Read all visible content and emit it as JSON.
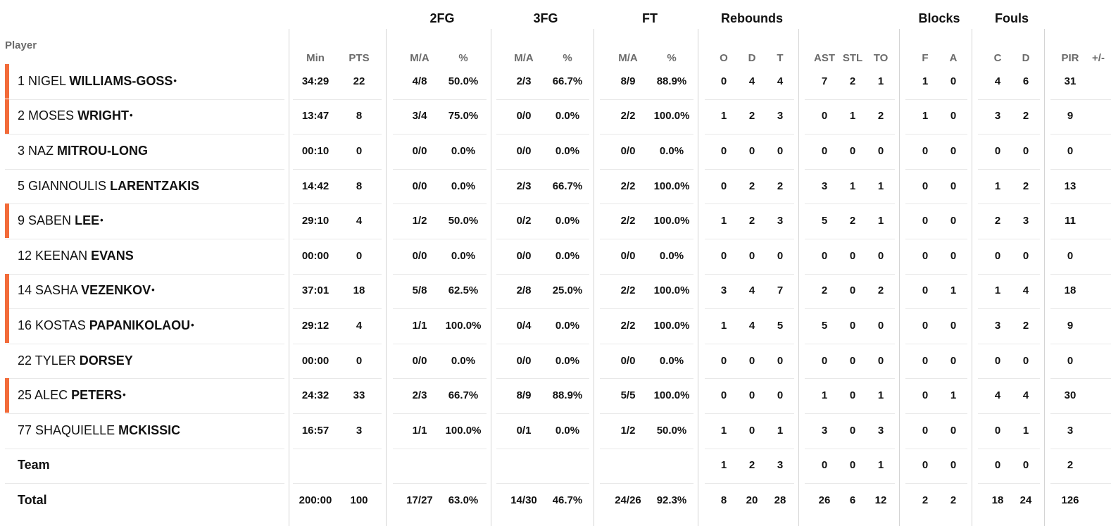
{
  "headers": {
    "player": "Player",
    "groups": {
      "fg2": "2FG",
      "fg3": "3FG",
      "ft": "FT",
      "reb": "Rebounds",
      "blk": "Blocks",
      "fouls": "Fouls"
    },
    "columns": [
      "Min",
      "PTS",
      "M/A",
      "%",
      "M/A",
      "%",
      "M/A",
      "%",
      "O",
      "D",
      "T",
      "AST",
      "STL",
      "TO",
      "F",
      "A",
      "C",
      "D",
      "PIR",
      "+/-"
    ]
  },
  "starter_color": "#f26b3a",
  "starter_mark": "•",
  "players": [
    {
      "num": "1",
      "first": "NIGEL",
      "last": "WILLIAMS-GOSS",
      "starter": true,
      "stats": [
        "34:29",
        "22",
        "4/8",
        "50.0%",
        "2/3",
        "66.7%",
        "8/9",
        "88.9%",
        "0",
        "4",
        "4",
        "7",
        "2",
        "1",
        "1",
        "0",
        "4",
        "6",
        "31",
        ""
      ]
    },
    {
      "num": "2",
      "first": "MOSES",
      "last": "WRIGHT",
      "starter": true,
      "stats": [
        "13:47",
        "8",
        "3/4",
        "75.0%",
        "0/0",
        "0.0%",
        "2/2",
        "100.0%",
        "1",
        "2",
        "3",
        "0",
        "1",
        "2",
        "1",
        "0",
        "3",
        "2",
        "9",
        ""
      ]
    },
    {
      "num": "3",
      "first": "NAZ",
      "last": "MITROU-LONG",
      "starter": false,
      "stats": [
        "00:10",
        "0",
        "0/0",
        "0.0%",
        "0/0",
        "0.0%",
        "0/0",
        "0.0%",
        "0",
        "0",
        "0",
        "0",
        "0",
        "0",
        "0",
        "0",
        "0",
        "0",
        "0",
        ""
      ]
    },
    {
      "num": "5",
      "first": "GIANNOULIS",
      "last": "LARENTZAKIS",
      "starter": false,
      "stats": [
        "14:42",
        "8",
        "0/0",
        "0.0%",
        "2/3",
        "66.7%",
        "2/2",
        "100.0%",
        "0",
        "2",
        "2",
        "3",
        "1",
        "1",
        "0",
        "0",
        "1",
        "2",
        "13",
        ""
      ]
    },
    {
      "num": "9",
      "first": "SABEN",
      "last": "LEE",
      "starter": true,
      "stats": [
        "29:10",
        "4",
        "1/2",
        "50.0%",
        "0/2",
        "0.0%",
        "2/2",
        "100.0%",
        "1",
        "2",
        "3",
        "5",
        "2",
        "1",
        "0",
        "0",
        "2",
        "3",
        "11",
        ""
      ]
    },
    {
      "num": "12",
      "first": "KEENAN",
      "last": "EVANS",
      "starter": false,
      "stats": [
        "00:00",
        "0",
        "0/0",
        "0.0%",
        "0/0",
        "0.0%",
        "0/0",
        "0.0%",
        "0",
        "0",
        "0",
        "0",
        "0",
        "0",
        "0",
        "0",
        "0",
        "0",
        "0",
        ""
      ]
    },
    {
      "num": "14",
      "first": "SASHA",
      "last": "VEZENKOV",
      "starter": true,
      "stats": [
        "37:01",
        "18",
        "5/8",
        "62.5%",
        "2/8",
        "25.0%",
        "2/2",
        "100.0%",
        "3",
        "4",
        "7",
        "2",
        "0",
        "2",
        "0",
        "1",
        "1",
        "4",
        "18",
        ""
      ]
    },
    {
      "num": "16",
      "first": "KOSTAS",
      "last": "PAPANIKOLAOU",
      "starter": true,
      "stats": [
        "29:12",
        "4",
        "1/1",
        "100.0%",
        "0/4",
        "0.0%",
        "2/2",
        "100.0%",
        "1",
        "4",
        "5",
        "5",
        "0",
        "0",
        "0",
        "0",
        "3",
        "2",
        "9",
        ""
      ]
    },
    {
      "num": "22",
      "first": "TYLER",
      "last": "DORSEY",
      "starter": false,
      "stats": [
        "00:00",
        "0",
        "0/0",
        "0.0%",
        "0/0",
        "0.0%",
        "0/0",
        "0.0%",
        "0",
        "0",
        "0",
        "0",
        "0",
        "0",
        "0",
        "0",
        "0",
        "0",
        "0",
        ""
      ]
    },
    {
      "num": "25",
      "first": "ALEC",
      "last": "PETERS",
      "starter": true,
      "stats": [
        "24:32",
        "33",
        "2/3",
        "66.7%",
        "8/9",
        "88.9%",
        "5/5",
        "100.0%",
        "0",
        "0",
        "0",
        "1",
        "0",
        "1",
        "0",
        "1",
        "4",
        "4",
        "30",
        ""
      ]
    },
    {
      "num": "77",
      "first": "SHAQUIELLE",
      "last": "MCKISSIC",
      "starter": false,
      "stats": [
        "16:57",
        "3",
        "1/1",
        "100.0%",
        "0/1",
        "0.0%",
        "1/2",
        "50.0%",
        "1",
        "0",
        "1",
        "3",
        "0",
        "3",
        "0",
        "0",
        "0",
        "1",
        "3",
        ""
      ]
    }
  ],
  "team": {
    "label": "Team",
    "stats": [
      "",
      "",
      "",
      "",
      "",
      "",
      "",
      "",
      "1",
      "2",
      "3",
      "0",
      "0",
      "1",
      "0",
      "0",
      "0",
      "0",
      "2",
      ""
    ]
  },
  "total": {
    "label": "Total",
    "stats": [
      "200:00",
      "100",
      "17/27",
      "63.0%",
      "14/30",
      "46.7%",
      "24/26",
      "92.3%",
      "8",
      "20",
      "28",
      "26",
      "6",
      "12",
      "2",
      "2",
      "18",
      "24",
      "126",
      ""
    ]
  }
}
